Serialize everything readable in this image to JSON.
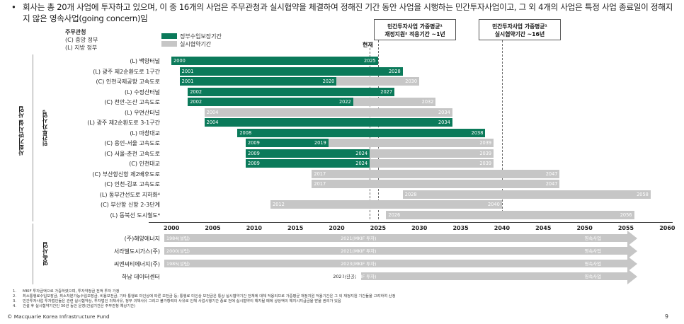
{
  "header": {
    "bullet": "•",
    "text": "회사는 총 20개 사업에 투자하고 있으며, 이 중 16개의 사업은 주무관청과 실시협약을 체결하여 정해진 기간 동안 사업을 시행하는 민간투자사업이고, 그 외 4개의 사업은 특정 사업 종료일이 정해지지 않은 영속사업(going concern)임"
  },
  "legend": {
    "authority_title": "주무관청",
    "authority_c": "(C) 중앙 정부",
    "authority_l": "(L) 지방 정부",
    "green_label": "정부수입보장기간",
    "gray_label": "실시협약기간",
    "green_color": "#0b7a5a",
    "gray_color": "#c6c6c6"
  },
  "callouts": {
    "left": [
      "민간투자사업 가중평균¹",
      "재정지원² 적용기간 ~1년"
    ],
    "right": [
      "민간투자사업 가중평균¹",
      "실시협약기간 ~16년"
    ]
  },
  "now_label": "현재",
  "sectors": {
    "main": "사회기반시설 사업",
    "sub": "민간투자사업³",
    "going": "영속사업"
  },
  "chart_data": {
    "type": "gantt",
    "x_range": [
      1998,
      2060
    ],
    "ticks": [
      2000,
      2005,
      2010,
      2015,
      2020,
      2025,
      2030,
      2035,
      2040,
      2045,
      2050,
      2055,
      2060
    ],
    "markers": [
      2024,
      2025,
      2040
    ],
    "projects": [
      {
        "label": "(L) 백양터널",
        "start": 2000,
        "green_end": 2025,
        "end": 2025,
        "labels": [
          "2000",
          "2025"
        ]
      },
      {
        "label": "(L) 광주 제2순환도로 1구간",
        "start": 2001,
        "green_end": 2028,
        "end": 2028,
        "labels": [
          "2001",
          "2028"
        ]
      },
      {
        "label": "(C) 인천국제공항 고속도로",
        "start": 2001,
        "green_end": 2020,
        "end": 2030,
        "labels": [
          "2001",
          "2020",
          "2030"
        ]
      },
      {
        "label": "(L) 수정산터널",
        "start": 2002,
        "green_end": 2027,
        "end": 2027,
        "labels": [
          "2002",
          "2027"
        ]
      },
      {
        "label": "(C) 천안-논산 고속도로",
        "start": 2002,
        "green_end": 2022,
        "end": 2032,
        "labels": [
          "2002",
          "2022",
          "2032"
        ]
      },
      {
        "label": "(L) 우면산터널",
        "start": 2004,
        "green_end": 2004,
        "end": 2034,
        "labels": [
          "2004",
          "2034"
        ]
      },
      {
        "label": "(L) 광주 제2순환도로 3-1구간",
        "start": 2004,
        "green_end": 2034,
        "end": 2034,
        "labels": [
          "2004",
          "2034"
        ]
      },
      {
        "label": "(L) 마창대교",
        "start": 2008,
        "green_end": 2038,
        "end": 2038,
        "labels": [
          "2008",
          "2038"
        ]
      },
      {
        "label": "(C) 용인-서울 고속도로",
        "start": 2009,
        "green_end": 2019,
        "end": 2039,
        "labels": [
          "2009",
          "2019",
          "2039"
        ]
      },
      {
        "label": "(C) 서울-춘천 고속도로",
        "start": 2009,
        "green_end": 2024,
        "end": 2039,
        "labels": [
          "2009",
          "2024",
          "2039"
        ]
      },
      {
        "label": "(C) 인천대교",
        "start": 2009,
        "green_end": 2024,
        "end": 2039,
        "labels": [
          "2009",
          "2024",
          "2039"
        ]
      },
      {
        "label": "(C) 부산항신항 제2배후도로",
        "start": 2017,
        "green_end": 2017,
        "end": 2047,
        "labels": [
          "2017",
          "2047"
        ]
      },
      {
        "label": "(C) 인천-김포 고속도로",
        "start": 2017,
        "green_end": 2017,
        "end": 2047,
        "labels": [
          "2017",
          "2047"
        ]
      },
      {
        "label": "(L) 동부간선도로 지하화⁴",
        "start": 2028,
        "green_end": 2028,
        "end": 2058,
        "labels": [
          "2028",
          "2058"
        ]
      },
      {
        "label": "(C) 부산항 신항 2-3단계",
        "start": 2012,
        "green_end": 2012,
        "end": 2040,
        "labels": [
          "2012",
          "2040"
        ]
      },
      {
        "label": "(L) 동북선 도시철도⁴",
        "start": 2026,
        "green_end": 2026,
        "end": 2056,
        "labels": [
          "2026",
          "2056"
        ]
      }
    ],
    "going_concern": [
      {
        "label": "(주)해양에너지",
        "start": 1998,
        "texts": [
          "1984(설립)",
          "2021(MKIF 투자)",
          "영속사업"
        ]
      },
      {
        "label": "서라벌도시가스(주)",
        "start": 1998,
        "texts": [
          "2000(설립)",
          "2021(MKIF 투자)",
          "영속사업"
        ]
      },
      {
        "label": "씨엔씨티에너지(주)",
        "start": 1998,
        "texts": [
          "1985(설립)",
          "2023(MKIF 투자)",
          "영속사업"
        ]
      },
      {
        "label": "하남 데이터센터",
        "start": 2023,
        "texts": [
          "2023(완공)",
          "2024(MKIF 투자)",
          "영속사업"
        ]
      }
    ]
  },
  "footnotes": [
    {
      "num": "1.",
      "text": "MKIF 투자금액으로 가중하였으며, 투자약정금 전액 투자 가정"
    },
    {
      "num": "2.",
      "text": "최소통행료수입보장금, 최소처분가능수입보장금, 비용보전금, 기타 통행료 미인상에 따른 보전금 등; 통행료 미인상 보전금은 통상 실시협약기간 전체에 대해 적용되므로 가중평균 재정지원 적용기간은 그 외 재정지원 기간들을 고려하여 산정"
    },
    {
      "num": "3.",
      "text": "민간투자사업 투자법인들은 관련 실시협약상, 투자법인 귀책사유, 정부 귀책사유 그리고 불가항력의 사유로 인해 사업시행기간 종료 전에 실시협약이 해지될 때에 상당액의 해지시지급금을 받을 권리가 있음"
    },
    {
      "num": "4.",
      "text": "건설 후 실시협약기간인 30년 동안 운영(건설기간은 주무관청 예상기간)"
    }
  ],
  "footer": {
    "copyright": "© Macquarie Korea Infrastructure Fund",
    "page": "9"
  }
}
